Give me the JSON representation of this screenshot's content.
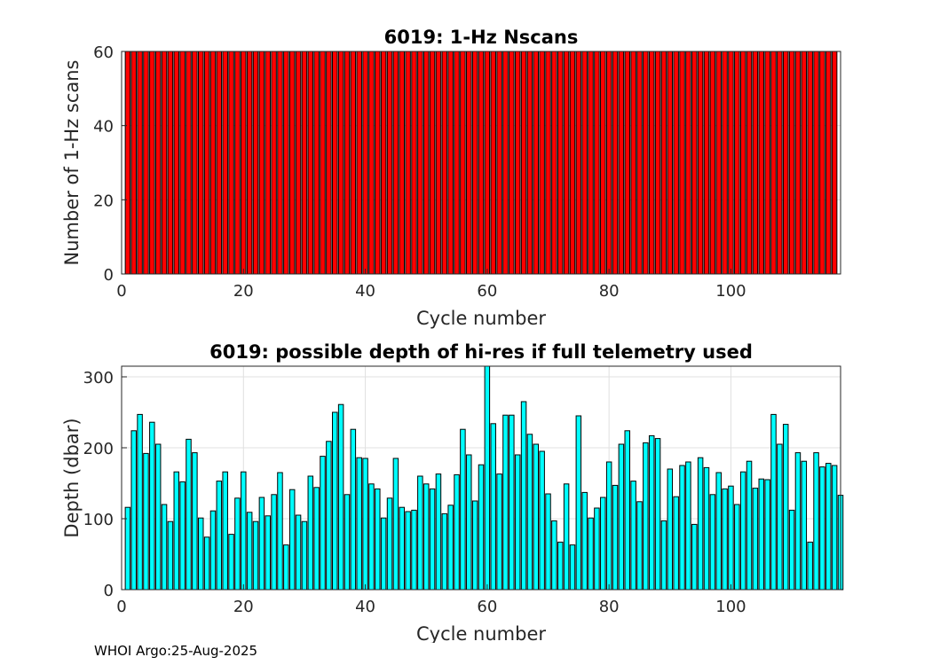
{
  "footer": "WHOI Argo:25-Aug-2025",
  "colors": {
    "top_bar_fill": "#ff0000",
    "bottom_bar_fill": "#00ffff",
    "bar_edge": "#000000",
    "grid": "#e0e0e0"
  },
  "chart_data": [
    {
      "type": "bar",
      "title": "6019: 1-Hz Nscans",
      "xlabel": "Cycle number",
      "ylabel": "Number of 1-Hz scans",
      "xlim": [
        0,
        118
      ],
      "ylim": [
        0,
        60
      ],
      "xticks": [
        0,
        20,
        40,
        60,
        80,
        100
      ],
      "yticks": [
        0,
        20,
        40,
        60
      ],
      "grid": true,
      "x_start": 1,
      "values": [
        60,
        60,
        60,
        60,
        60,
        60,
        60,
        60,
        60,
        60,
        60,
        60,
        60,
        60,
        60,
        60,
        60,
        60,
        60,
        60,
        60,
        60,
        60,
        60,
        60,
        60,
        60,
        60,
        60,
        60,
        60,
        60,
        60,
        60,
        60,
        60,
        60,
        60,
        60,
        60,
        60,
        60,
        60,
        60,
        60,
        60,
        60,
        60,
        60,
        60,
        60,
        60,
        60,
        60,
        60,
        60,
        60,
        60,
        60,
        60,
        60,
        60,
        60,
        60,
        60,
        60,
        60,
        60,
        60,
        60,
        60,
        60,
        60,
        60,
        60,
        60,
        60,
        60,
        60,
        60,
        60,
        60,
        60,
        60,
        60,
        60,
        60,
        60,
        60,
        60,
        60,
        60,
        60,
        60,
        60,
        60,
        60,
        60,
        60,
        60,
        60,
        60,
        60,
        60,
        60,
        60,
        60,
        60,
        60,
        60,
        60,
        60,
        60,
        60,
        60,
        60,
        60
      ]
    },
    {
      "type": "bar",
      "title": "6019: possible depth of hi-res if full telemetry used",
      "xlabel": "Cycle number",
      "ylabel": "Depth (dbar)",
      "xlim": [
        0,
        118
      ],
      "ylim": [
        0,
        315
      ],
      "xticks": [
        0,
        20,
        40,
        60,
        80,
        100
      ],
      "yticks": [
        0,
        100,
        200,
        300
      ],
      "grid": true,
      "x_start": 1,
      "values": [
        116,
        224,
        247,
        192,
        236,
        205,
        120,
        96,
        166,
        152,
        212,
        193,
        101,
        74,
        111,
        153,
        166,
        78,
        129,
        166,
        109,
        96,
        130,
        104,
        134,
        165,
        63,
        141,
        105,
        96,
        160,
        144,
        188,
        209,
        250,
        261,
        134,
        226,
        186,
        185,
        149,
        142,
        101,
        129,
        185,
        116,
        110,
        112,
        160,
        149,
        142,
        163,
        107,
        119,
        162,
        226,
        190,
        125,
        176,
        315,
        234,
        163,
        246,
        246,
        190,
        265,
        219,
        205,
        195,
        135,
        97,
        67,
        149,
        63,
        245,
        137,
        101,
        115,
        130,
        180,
        147,
        205,
        224,
        153,
        124,
        207,
        217,
        213,
        97,
        170,
        131,
        175,
        180,
        92,
        186,
        172,
        134,
        165,
        142,
        146,
        120,
        166,
        181,
        143,
        156,
        155,
        247,
        205,
        233,
        112,
        193,
        181,
        67,
        193,
        173,
        178,
        175,
        133
      ]
    }
  ]
}
